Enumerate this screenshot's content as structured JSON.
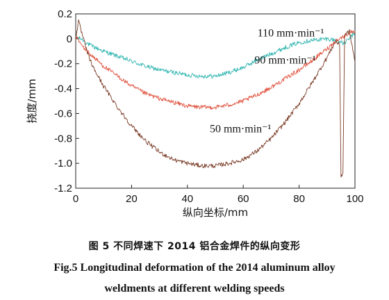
{
  "chart_data": {
    "type": "line",
    "xlabel": "纵向坐标/mm",
    "ylabel": "挠度/mm",
    "xlim": [
      0,
      100
    ],
    "ylim": [
      -1.2,
      0.2
    ],
    "x_ticks": [
      "0",
      "20",
      "40",
      "60",
      "80",
      "100"
    ],
    "y_ticks": [
      "0.2",
      "0",
      "-0.2",
      "-0.4",
      "-0.6",
      "-0.8",
      "-1.0",
      "-1.2"
    ],
    "grid": false,
    "series": [
      {
        "name": "110 mm·min⁻¹",
        "color": "#2fb5b0",
        "x": [
          0,
          2,
          5,
          10,
          15,
          20,
          25,
          30,
          35,
          40,
          45,
          50,
          55,
          60,
          65,
          70,
          75,
          80,
          85,
          90,
          93,
          96,
          98,
          100
        ],
        "y": [
          0.01,
          0.0,
          -0.05,
          -0.1,
          -0.14,
          -0.18,
          -0.22,
          -0.25,
          -0.27,
          -0.29,
          -0.3,
          -0.3,
          -0.27,
          -0.23,
          -0.17,
          -0.12,
          -0.07,
          -0.03,
          -0.01,
          0.0,
          -0.01,
          -0.04,
          0.0,
          0.05
        ]
      },
      {
        "name": "90 mm·min⁻¹",
        "color": "#e0533f",
        "x": [
          0,
          2,
          5,
          10,
          15,
          20,
          25,
          30,
          35,
          40,
          45,
          50,
          55,
          60,
          65,
          70,
          75,
          80,
          85,
          90,
          93,
          96,
          98,
          100
        ],
        "y": [
          0.03,
          -0.05,
          -0.12,
          -0.22,
          -0.3,
          -0.38,
          -0.44,
          -0.48,
          -0.51,
          -0.54,
          -0.55,
          -0.55,
          -0.53,
          -0.5,
          -0.45,
          -0.39,
          -0.32,
          -0.25,
          -0.17,
          -0.08,
          -0.02,
          0.02,
          0.05,
          0.06
        ]
      },
      {
        "name": "50 mm·min⁻¹",
        "color": "#7a3b26",
        "x": [
          0,
          1,
          2,
          4,
          6,
          10,
          15,
          20,
          25,
          30,
          35,
          40,
          45,
          50,
          55,
          60,
          65,
          70,
          75,
          80,
          85,
          90,
          93,
          94.5,
          95,
          95.7,
          96.3,
          98,
          100
        ],
        "y": [
          0.0,
          0.14,
          0.06,
          -0.1,
          -0.22,
          -0.38,
          -0.55,
          -0.7,
          -0.82,
          -0.91,
          -0.97,
          -1.0,
          -1.02,
          -1.02,
          -1.0,
          -0.97,
          -0.9,
          -0.8,
          -0.67,
          -0.52,
          -0.34,
          -0.15,
          -0.02,
          -0.05,
          -1.1,
          -1.08,
          0.03,
          0.06,
          -0.18
        ]
      }
    ]
  },
  "captions": {
    "zh": "图 5    不同焊速下 2014 铝合金焊件的纵向变形",
    "en_line1": "Fig.5    Longitudinal deformation of the 2014 aluminum alloy",
    "en_line2": "weldments at different welding speeds"
  }
}
